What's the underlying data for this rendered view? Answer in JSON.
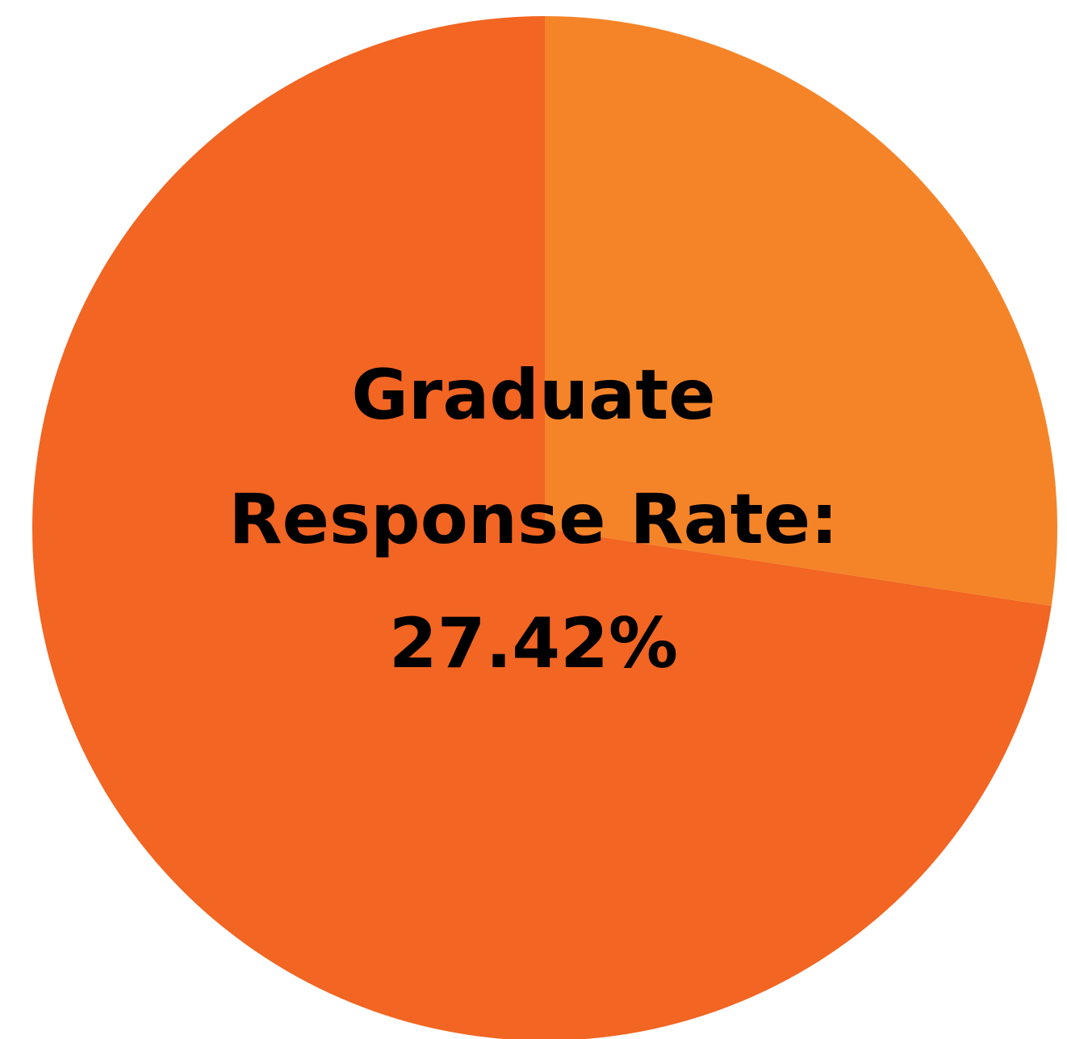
{
  "chart_data": {
    "type": "pie",
    "categories": [
      "",
      ""
    ],
    "values": [
      27.42,
      72.58
    ],
    "colors": [
      "#f58428",
      "#f26522"
    ],
    "start_angle": "12 o'clock, clockwise",
    "center_label": {
      "line1": "Graduate",
      "line2": "Response Rate:",
      "line3": "27.42%"
    }
  }
}
